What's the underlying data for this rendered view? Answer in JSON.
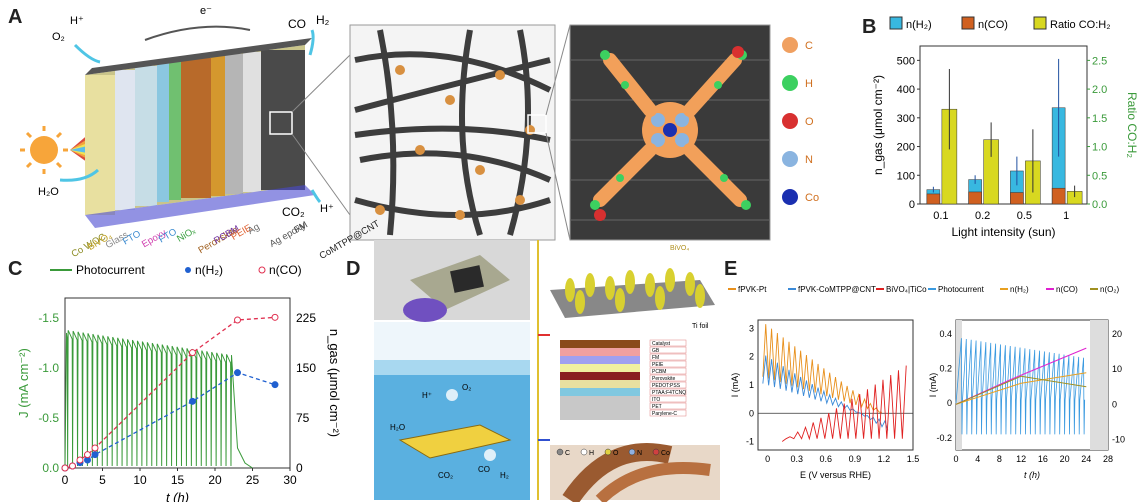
{
  "panels": {
    "A": "A",
    "B": "B",
    "C": "C",
    "D": "D",
    "E": "E"
  },
  "panelA": {
    "left_labels": [
      "H⁺",
      "O₂",
      "H₂O",
      "e⁻",
      "CO",
      "H₂",
      "CO₂",
      "H⁺"
    ],
    "layers": [
      "Co WOC",
      "BiVO₄",
      "Glass",
      "FTO",
      "Epoxy",
      "FTO",
      "NiOₓ",
      "Perovskite",
      "PCBM",
      "PEIE",
      "Ag",
      "Ag epoxy",
      "FM",
      "CoMTPP@CNT"
    ],
    "legend": [
      {
        "symbol": "C",
        "color": "#f0a060"
      },
      {
        "symbol": "H",
        "color": "#3cd060"
      },
      {
        "symbol": "O",
        "color": "#d83030"
      },
      {
        "symbol": "N",
        "color": "#8ab4e0"
      },
      {
        "symbol": "Co",
        "color": "#1a2fb0"
      }
    ]
  },
  "chart_data": [
    {
      "id": "B",
      "type": "bar",
      "categories": [
        "0.1",
        "0.2",
        "0.5",
        "1"
      ],
      "series": [
        {
          "name": "n(H₂)",
          "color": "#38b8e0",
          "values": [
            50,
            85,
            115,
            335
          ],
          "err": [
            10,
            15,
            50,
            170
          ]
        },
        {
          "name": "n(CO)",
          "color": "#d06020",
          "values": [
            35,
            42,
            40,
            55
          ],
          "err": [
            10,
            10,
            10,
            20
          ]
        },
        {
          "name": "Ratio CO:H₂",
          "color": "#d8d820",
          "values": [
            1.65,
            1.12,
            0.75,
            0.22
          ],
          "err": [
            0.7,
            0.3,
            0.55,
            0.1
          ],
          "axis": "right"
        }
      ],
      "xlabel": "Light intensity (sun)",
      "ylabel": "n_gas (μmol cm⁻²)",
      "y2label": "Ratio CO:H₂",
      "ylim": [
        0,
        550
      ],
      "y2lim": [
        0,
        2.75
      ],
      "yticks": [
        "0",
        "100",
        "200",
        "300",
        "400",
        "500"
      ],
      "y2ticks": [
        "0.0",
        "0.5",
        "1.0",
        "1.5",
        "2.0",
        "2.5"
      ]
    },
    {
      "id": "C",
      "type": "line",
      "series": [
        {
          "name": "Photocurrent",
          "color": "#3a9a3a"
        },
        {
          "name": "n(H₂)",
          "color": "#2060d0",
          "x": [
            0,
            1,
            2,
            3,
            4,
            17,
            23,
            28
          ],
          "y": [
            0,
            3,
            8,
            12,
            20,
            100,
            143,
            125
          ]
        },
        {
          "name": "n(CO)",
          "color": "#e03050",
          "x": [
            0,
            1,
            2,
            3,
            4,
            17,
            23,
            28
          ],
          "y": [
            0,
            3,
            12,
            20,
            30,
            173,
            222,
            226
          ]
        }
      ],
      "xlabel": "t (h)",
      "ylabel": "J (mA cm⁻²)",
      "y2label": "n_gas (μmol cm⁻²)",
      "xticks": [
        "0",
        "5",
        "10",
        "15",
        "20",
        "25",
        "30"
      ],
      "yticks": [
        "0.0",
        "-0.5",
        "-1.0",
        "-1.5"
      ],
      "y2ticks": [
        "0",
        "75",
        "150",
        "225"
      ]
    },
    {
      "id": "E1",
      "type": "line",
      "legend": [
        "fPVK-Pt",
        "fPVK-CoMTPP@CNT",
        "BiVO₄|TiCo"
      ],
      "colors": [
        "#e8901c",
        "#3a8ad8",
        "#e02020"
      ],
      "xlabel": "E (V versus RHE)",
      "ylabel": "I (mA)",
      "xticks": [
        "0",
        "0.3",
        "0.6",
        "0.9",
        "1.2",
        "1.5"
      ],
      "yticks": [
        "-1",
        "0",
        "1",
        "2",
        "3"
      ]
    },
    {
      "id": "E2",
      "type": "line",
      "legend": [
        "Photocurrent",
        "n(H₂)",
        "n(CO)",
        "n(O₂)"
      ],
      "colors": [
        "#3a9ae0",
        "#e8a020",
        "#e020d0",
        "#a09020"
      ],
      "xlabel": "t (h)",
      "ylabel": "I (mA)",
      "xticks": [
        "0",
        "4",
        "8",
        "12",
        "16",
        "20",
        "24",
        "28"
      ],
      "yticks": [
        "-0.2",
        "0",
        "0.2",
        "0.4"
      ],
      "y2ticks": [
        "-10",
        "0",
        "10",
        "20"
      ]
    }
  ],
  "panelD": {
    "bivo4": "BiVO₄",
    "tifoil": "Ti foil",
    "o2": "O₂",
    "h2o": "H₂O",
    "hplus": "H⁺",
    "co2": "CO₂",
    "co": "CO",
    "h2": "H₂",
    "stack": [
      "Catalyst",
      "GB",
      "FM",
      "PEIE",
      "PCBM",
      "Perovskite",
      "PEDOT:PSS",
      "PTAA:F4TCNQ",
      "ITO",
      "PET",
      "Parylene-C"
    ],
    "atoms": [
      "C",
      "H",
      "O",
      "N",
      "Co"
    ]
  }
}
